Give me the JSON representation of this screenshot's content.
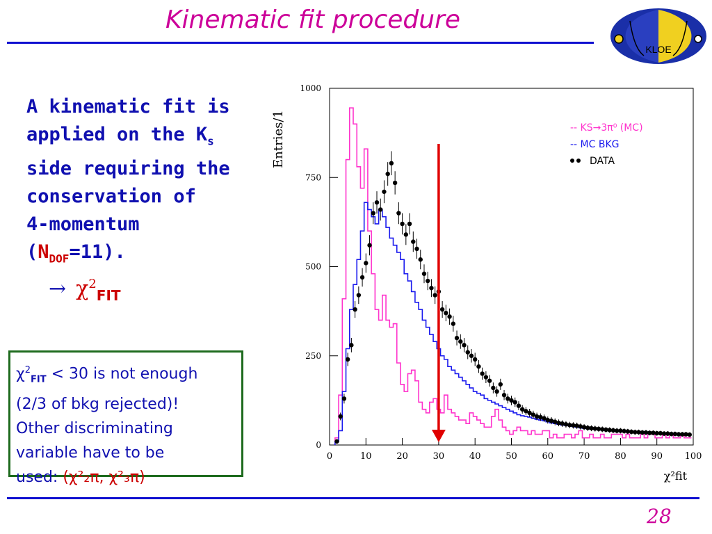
{
  "slide": {
    "title": "Kinematic fit procedure",
    "page_number": "28",
    "logo_text": "KLOE"
  },
  "intro": {
    "line1": "A kinematic fit is",
    "line2a": "applied on the K",
    "line2sub": "s",
    "line3": "side requiring the",
    "line4": "conservation of",
    "line5": "4-momentum",
    "line6_open": "(",
    "line6_n": "N",
    "line6_sub": "DOF",
    "line6_rest": "=11).",
    "arrow": "→",
    "chi": "χ",
    "chi_sup": "2",
    "chi_sub": "FIT"
  },
  "note_box": {
    "chi": "χ",
    "chi_sup": "2",
    "chi_sub": "FIT",
    "rest1": " < 30 is not enough",
    "line2": "(2/3 of bkg rejected)!",
    "line3": "Other discriminating",
    "line4": "variable have to be",
    "line5": "used: ",
    "vars": "(χ²₂π, χ²₃π)"
  },
  "colors": {
    "mc_signal": "#ff33cc",
    "mc_bkg": "#1a1aee",
    "data": "#000000",
    "cut": "#e00000",
    "accent": "#cc0099"
  },
  "chart_data": {
    "type": "histogram",
    "ylabel": "Entries/1",
    "xlabel": "χ²fit",
    "xlim": [
      0,
      100
    ],
    "ylim": [
      0,
      1000
    ],
    "x_ticks": [
      0,
      10,
      20,
      30,
      40,
      50,
      60,
      70,
      80,
      90,
      100
    ],
    "y_ticks": [
      0,
      250,
      500,
      750,
      1000
    ],
    "cut_x": 30,
    "legend": [
      {
        "style": "--",
        "label": "-- KS→3π⁰ (MC)",
        "color": "#ff33cc"
      },
      {
        "style": "--",
        "label": "-- MC BKG",
        "color": "#1a1aee"
      },
      {
        "style": "dots",
        "label": "DATA",
        "color": "#000000"
      }
    ],
    "x": [
      2,
      3,
      4,
      5,
      6,
      7,
      8,
      9,
      10,
      11,
      12,
      13,
      14,
      15,
      16,
      17,
      18,
      19,
      20,
      21,
      22,
      23,
      24,
      25,
      26,
      27,
      28,
      29,
      30,
      31,
      32,
      33,
      34,
      35,
      36,
      37,
      38,
      39,
      40,
      41,
      42,
      43,
      44,
      45,
      46,
      47,
      48,
      49,
      50,
      51,
      52,
      53,
      54,
      55,
      56,
      57,
      58,
      59,
      60,
      61,
      62,
      63,
      64,
      65,
      66,
      67,
      68,
      69,
      70,
      71,
      72,
      73,
      74,
      75,
      76,
      77,
      78,
      79,
      80,
      81,
      82,
      83,
      84,
      85,
      86,
      87,
      88,
      89,
      90,
      91,
      92,
      93,
      94,
      95,
      96,
      97,
      98,
      99
    ],
    "series": [
      {
        "name": "KS→3π⁰ (MC)",
        "values": [
          20,
          140,
          410,
          800,
          945,
          900,
          780,
          720,
          830,
          600,
          480,
          380,
          350,
          420,
          350,
          330,
          340,
          230,
          170,
          150,
          200,
          210,
          180,
          120,
          100,
          90,
          120,
          130,
          100,
          90,
          140,
          100,
          90,
          80,
          70,
          70,
          60,
          90,
          80,
          70,
          60,
          50,
          50,
          80,
          100,
          70,
          50,
          40,
          30,
          40,
          50,
          40,
          40,
          30,
          40,
          30,
          30,
          40,
          40,
          20,
          30,
          20,
          20,
          30,
          30,
          20,
          30,
          40,
          20,
          20,
          30,
          20,
          20,
          30,
          20,
          20,
          30,
          30,
          30,
          20,
          30,
          20,
          20,
          20,
          30,
          20,
          30,
          30,
          20,
          20,
          30,
          20,
          30,
          20,
          20,
          30,
          20,
          20
        ]
      },
      {
        "name": "MC BKG",
        "values": [
          10,
          40,
          150,
          270,
          380,
          450,
          520,
          600,
          680,
          660,
          640,
          620,
          660,
          640,
          610,
          580,
          560,
          540,
          520,
          480,
          460,
          430,
          400,
          380,
          350,
          330,
          310,
          290,
          270,
          250,
          240,
          220,
          210,
          200,
          190,
          180,
          170,
          160,
          150,
          145,
          140,
          130,
          125,
          120,
          115,
          110,
          105,
          100,
          95,
          90,
          85,
          82,
          80,
          78,
          75,
          72,
          70,
          68,
          65,
          62,
          60,
          58,
          56,
          55,
          54,
          52,
          50,
          48,
          47,
          46,
          45,
          44,
          43,
          42,
          41,
          40,
          40,
          39,
          38,
          37,
          36,
          36,
          35,
          35,
          34,
          34,
          33,
          33,
          32,
          32,
          31,
          31,
          30,
          30,
          30,
          29,
          29,
          28
        ]
      },
      {
        "name": "DATA",
        "values": [
          10,
          80,
          130,
          240,
          280,
          380,
          420,
          470,
          510,
          560,
          650,
          680,
          660,
          710,
          760,
          790,
          735,
          650,
          620,
          590,
          620,
          570,
          550,
          520,
          480,
          460,
          440,
          420,
          430,
          380,
          370,
          360,
          340,
          300,
          290,
          280,
          260,
          250,
          240,
          220,
          200,
          190,
          180,
          160,
          150,
          170,
          140,
          130,
          125,
          120,
          110,
          100,
          95,
          90,
          85,
          80,
          78,
          75,
          70,
          68,
          65,
          62,
          60,
          58,
          56,
          55,
          54,
          52,
          50,
          48,
          47,
          46,
          45,
          44,
          43,
          42,
          41,
          40,
          40,
          39,
          38,
          37,
          36,
          36,
          35,
          35,
          34,
          34,
          33,
          33,
          32,
          32,
          31,
          31,
          30,
          30,
          30,
          29
        ]
      }
    ]
  }
}
